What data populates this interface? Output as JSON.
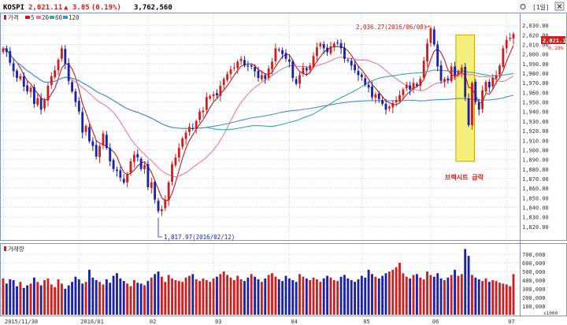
{
  "header": {
    "symbol": "KOSPI",
    "price": "2,021.11",
    "change_arrow": "▲",
    "change": "3.85",
    "change_pct": "(0.19%)",
    "volume": "3,762,560",
    "period": "[1일]",
    "settings_icon": "gear-icon",
    "close_icon": "close-icon"
  },
  "legend": {
    "price": "가격",
    "ma5": "5",
    "ma20": "20",
    "ma60": "60",
    "ma120": "120"
  },
  "volume_legend": "거래량",
  "price_badge": {
    "value": "2,021.11",
    "pct": "0.19%"
  },
  "annotations": {
    "high": "2,036.27(2016/06/08)",
    "low": "1,817.97(2016/02/12)",
    "event": "브렉시트 급락"
  },
  "colors": {
    "up": "#d11f1f",
    "down": "#1c21a8",
    "ma5": "#c21a1a",
    "ma20": "#e87aa0",
    "ma60": "#3aa7a0",
    "ma120": "#4a8fd0",
    "grid": "#c9cde4",
    "event_box": "#f4f07a"
  },
  "chart_data": {
    "type": "candlestick",
    "price_axis": {
      "ylim": [
        1810,
        2040
      ],
      "ticks": [
        "2,030.00",
        "2,020.00",
        "2,010.00",
        "2,000.00",
        "1,990.00",
        "1,980.00",
        "1,970.00",
        "1,960.00",
        "1,950.00",
        "1,940.00",
        "1,930.00",
        "1,920.00",
        "1,910.00",
        "1,900.00",
        "1,890.00",
        "1,880.00",
        "1,870.00",
        "1,860.00",
        "1,850.00",
        "1,840.00",
        "1,830.00",
        "1,820.00"
      ],
      "tick_values": [
        2030,
        2020,
        2010,
        2000,
        1990,
        1980,
        1970,
        1960,
        1950,
        1940,
        1930,
        1920,
        1910,
        1900,
        1890,
        1880,
        1870,
        1860,
        1850,
        1840,
        1830,
        1820
      ]
    },
    "volume_axis": {
      "ylim": [
        0,
        800000
      ],
      "ticks": [
        "700,000",
        "600,000",
        "500,000",
        "400,000",
        "300,000",
        "200,000",
        "100,000"
      ],
      "tick_values": [
        700000,
        600000,
        500000,
        400000,
        300000,
        200000,
        100000
      ],
      "unit": "x1000"
    },
    "x_labels": [
      {
        "label": "2015/11/30",
        "index": 0
      },
      {
        "label": "2016/01",
        "index": 22
      },
      {
        "label": "02",
        "index": 42
      },
      {
        "label": "03",
        "index": 61
      },
      {
        "label": "04",
        "index": 83
      },
      {
        "label": "05",
        "index": 104
      },
      {
        "label": "06",
        "index": 124
      },
      {
        "label": "07",
        "index": 146
      }
    ],
    "closes": [
      2006,
      2002,
      1991,
      1982,
      1975,
      1977,
      1966,
      1961,
      1965,
      1948,
      1954,
      1942,
      1952,
      1967,
      1977,
      1983,
      1994,
      2006,
      1990,
      1972,
      1961,
      1950,
      1940,
      1918,
      1925,
      1909,
      1904,
      1893,
      1904,
      1917,
      1902,
      1888,
      1880,
      1878,
      1871,
      1866,
      1875,
      1888,
      1895,
      1892,
      1880,
      1884,
      1861,
      1866,
      1848,
      1836,
      1838,
      1848,
      1866,
      1885,
      1892,
      1902,
      1912,
      1918,
      1924,
      1922,
      1930,
      1940,
      1941,
      1955,
      1956,
      1958,
      1957,
      1967,
      1974,
      1979,
      1984,
      1986,
      1992,
      1995,
      1988,
      1987,
      1987,
      1982,
      1975,
      1978,
      1974,
      1985,
      1992,
      2006,
      2004,
      2000,
      1995,
      1992,
      1975,
      1969,
      1978,
      1986,
      1983,
      1988,
      1998,
      2007,
      2011,
      2006,
      2002,
      2008,
      2011,
      2012,
      2006,
      1995,
      1993,
      1988,
      1983,
      1978,
      1976,
      1968,
      1965,
      1955,
      1958,
      1953,
      1948,
      1942,
      1945,
      1949,
      1952,
      1957,
      1963,
      1968,
      1963,
      1970,
      1967,
      1974,
      1993,
      2011,
      2027,
      2010,
      1987,
      1972,
      1974,
      1973,
      1987,
      1978,
      1982,
      1986,
      1955,
      1926,
      1970,
      1950,
      1942,
      1962,
      1971,
      1965,
      1975,
      1978,
      1988,
      2006,
      2015,
      2017,
      2021
    ],
    "volumes": [
      420000,
      360000,
      410000,
      400000,
      330000,
      380000,
      310000,
      340000,
      360000,
      430000,
      380000,
      340000,
      400000,
      420000,
      350000,
      320000,
      410000,
      360000,
      300000,
      340000,
      380000,
      440000,
      410000,
      360000,
      380000,
      520000,
      430000,
      400000,
      380000,
      350000,
      410000,
      370000,
      450000,
      480000,
      420000,
      390000,
      360000,
      330000,
      400000,
      370000,
      360000,
      340000,
      390000,
      430000,
      470000,
      500000,
      440000,
      380000,
      460000,
      420000,
      400000,
      390000,
      380000,
      430000,
      450000,
      470000,
      410000,
      390000,
      420000,
      400000,
      380000,
      420000,
      440000,
      470000,
      500000,
      460000,
      430000,
      400000,
      450000,
      410000,
      390000,
      430000,
      470000,
      440000,
      410000,
      380000,
      420000,
      460000,
      480000,
      440000,
      410000,
      390000,
      450000,
      420000,
      400000,
      380000,
      470000,
      440000,
      420000,
      400000,
      430000,
      410000,
      380000,
      420000,
      450000,
      430000,
      400000,
      390000,
      440000,
      460000,
      420000,
      400000,
      380000,
      410000,
      450000,
      430000,
      520000,
      470000,
      440000,
      420000,
      450000,
      480000,
      500000,
      520000,
      550000,
      600000,
      480000,
      440000,
      420000,
      460000,
      470000,
      430000,
      410000,
      500000,
      460000,
      440000,
      480000,
      420000,
      400000,
      430000,
      460000,
      520000,
      450000,
      470000,
      760000,
      680000,
      460000,
      430000,
      410000,
      390000,
      420000,
      380000,
      400000,
      390000,
      370000,
      360000,
      350000,
      330000,
      470000
    ]
  }
}
